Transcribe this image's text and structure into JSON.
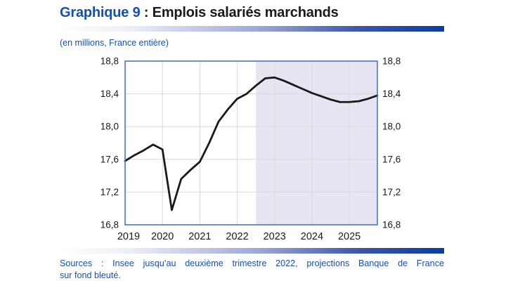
{
  "header": {
    "title_prefix": "Graphique 9",
    "title_rest": " : Emplois salariés marchands",
    "subtitle": "(en millions, France entière)"
  },
  "chart_data": {
    "type": "line",
    "title": "Emplois salariés marchands",
    "unit_note": "(en millions, France entière)",
    "x_start_year": 2019,
    "x_step_years": 0.25,
    "values": [
      17.58,
      17.65,
      17.71,
      17.78,
      17.72,
      16.98,
      17.36,
      17.47,
      17.57,
      17.8,
      18.06,
      18.21,
      18.34,
      18.4,
      18.5,
      18.59,
      18.6,
      18.56,
      18.51,
      18.46,
      18.41,
      18.37,
      18.33,
      18.3,
      18.3,
      18.31,
      18.34,
      18.38
    ],
    "projection_start_index": 14,
    "x_year_labels": [
      "2019",
      "2020",
      "2021",
      "2022",
      "2023",
      "2024",
      "2025"
    ],
    "y_tick_labels": [
      "18,8",
      "18,4",
      "18,0",
      "17,6",
      "17,2",
      "16,8"
    ],
    "y_tick_values": [
      18.8,
      18.4,
      18.0,
      17.6,
      17.2,
      16.8
    ],
    "ylim": [
      16.8,
      18.8
    ],
    "grid": true,
    "legend": "none"
  },
  "footer": {
    "sources_line1": "Sources : Insee jusqu’au deuxième trimestre 2022, projections Banque de France",
    "sources_line2": "sur fond bleuté."
  },
  "colors": {
    "accent_blue": "#1750AE",
    "title_dark": "#1A1A1A",
    "plot_border": "#4976C9",
    "grid": "#D9D9D9",
    "projection_bg": "#E6E6F2",
    "line": "#1A1A1A",
    "tick_text": "#1A1A1A",
    "bar_gradient_end": "#0E3C9E"
  }
}
